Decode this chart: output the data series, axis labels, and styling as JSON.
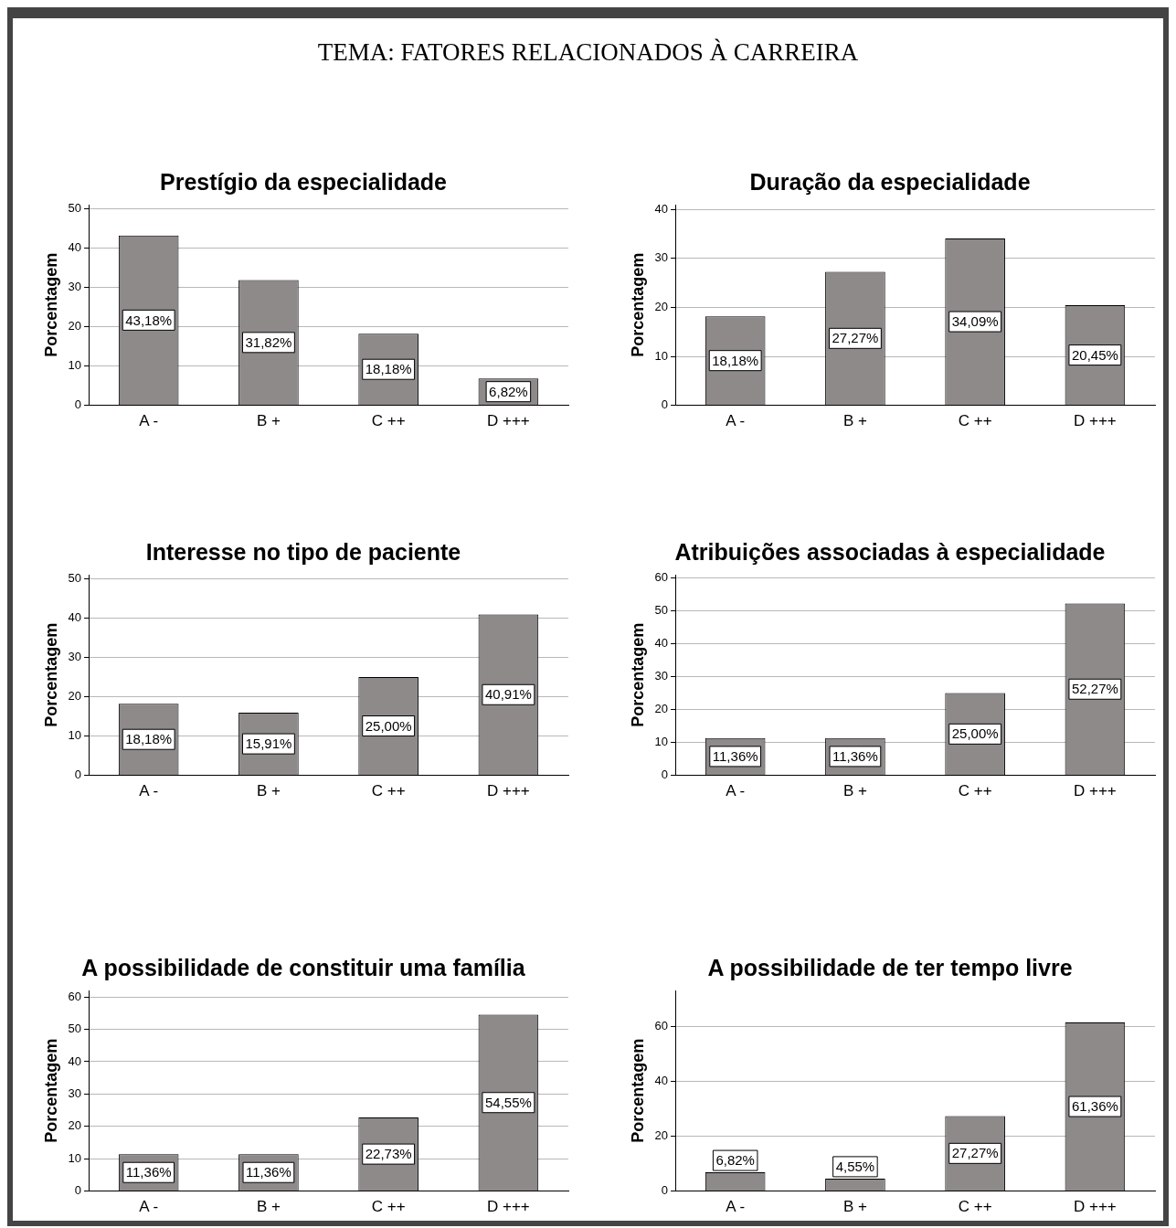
{
  "chart_data": [
    {
      "type": "other",
      "title": "TEMA: FATORES RELACIONADOS À CARREIRA"
    },
    {
      "type": "bar",
      "title": "Prestígio da especialidade",
      "ylabel": "Porcentagem",
      "categories": [
        "A -",
        "B +",
        "C ++",
        "D +++"
      ],
      "values": [
        43.18,
        31.82,
        18.18,
        6.82
      ],
      "value_labels": [
        "43,18%",
        "31,82%",
        "18,18%",
        "6,82%"
      ],
      "color": "#8e8a8a",
      "ylim": [
        0,
        51
      ],
      "yticks": [
        0,
        10,
        20,
        30,
        40,
        50
      ],
      "grid": "y",
      "legend": false
    },
    {
      "type": "bar",
      "title": "Duração da especialidade",
      "ylabel": "Porcentagem",
      "categories": [
        "A -",
        "B +",
        "C ++",
        "D +++"
      ],
      "values": [
        18.18,
        27.27,
        34.09,
        20.45
      ],
      "value_labels": [
        "18,18%",
        "27,27%",
        "34,09%",
        "20,45%"
      ],
      "color": "#8e8a8a",
      "ylim": [
        0,
        41
      ],
      "yticks": [
        0,
        10,
        20,
        30,
        40
      ],
      "grid": "y",
      "legend": false
    },
    {
      "type": "bar",
      "title": "Interesse no tipo de paciente",
      "ylabel": "Porcentagem",
      "categories": [
        "A -",
        "B +",
        "C ++",
        "D +++"
      ],
      "values": [
        18.18,
        15.91,
        25.0,
        40.91
      ],
      "value_labels": [
        "18,18%",
        "15,91%",
        "25,00%",
        "40,91%"
      ],
      "color": "#8e8a8a",
      "ylim": [
        0,
        51
      ],
      "yticks": [
        0,
        10,
        20,
        30,
        40,
        50
      ],
      "grid": "y",
      "legend": false
    },
    {
      "type": "bar",
      "title": "Atribuições associadas à especialidade",
      "ylabel": "Porcentagem",
      "categories": [
        "A -",
        "B +",
        "C ++",
        "D +++"
      ],
      "values": [
        11.36,
        11.36,
        25.0,
        52.27
      ],
      "value_labels": [
        "11,36%",
        "11,36%",
        "25,00%",
        "52,27%"
      ],
      "color": "#8e8a8a",
      "ylim": [
        0,
        61
      ],
      "yticks": [
        0,
        10,
        20,
        30,
        40,
        50,
        60
      ],
      "grid": "y",
      "legend": false
    },
    {
      "type": "bar",
      "title": "A possibilidade de constituir uma família",
      "ylabel": "Porcentagem",
      "categories": [
        "A -",
        "B +",
        "C ++",
        "D +++"
      ],
      "values": [
        11.36,
        11.36,
        22.73,
        54.55
      ],
      "value_labels": [
        "11,36%",
        "11,36%",
        "22,73%",
        "54,55%"
      ],
      "color": "#8e8a8a",
      "ylim": [
        0,
        62
      ],
      "yticks": [
        0,
        10,
        20,
        30,
        40,
        50,
        60
      ],
      "grid": "y",
      "legend": false
    },
    {
      "type": "bar",
      "title": "A possibilidade de ter tempo livre",
      "ylabel": "Porcentagem",
      "categories": [
        "A -",
        "B +",
        "C ++",
        "D +++"
      ],
      "values": [
        6.82,
        4.55,
        27.27,
        61.36
      ],
      "value_labels": [
        "6,82%",
        "4,55%",
        "27,27%",
        "61,36%"
      ],
      "color": "#8e8a8a",
      "ylim": [
        0,
        73
      ],
      "yticks": [
        0,
        20,
        40,
        60
      ],
      "grid": "y",
      "legend": false
    }
  ]
}
